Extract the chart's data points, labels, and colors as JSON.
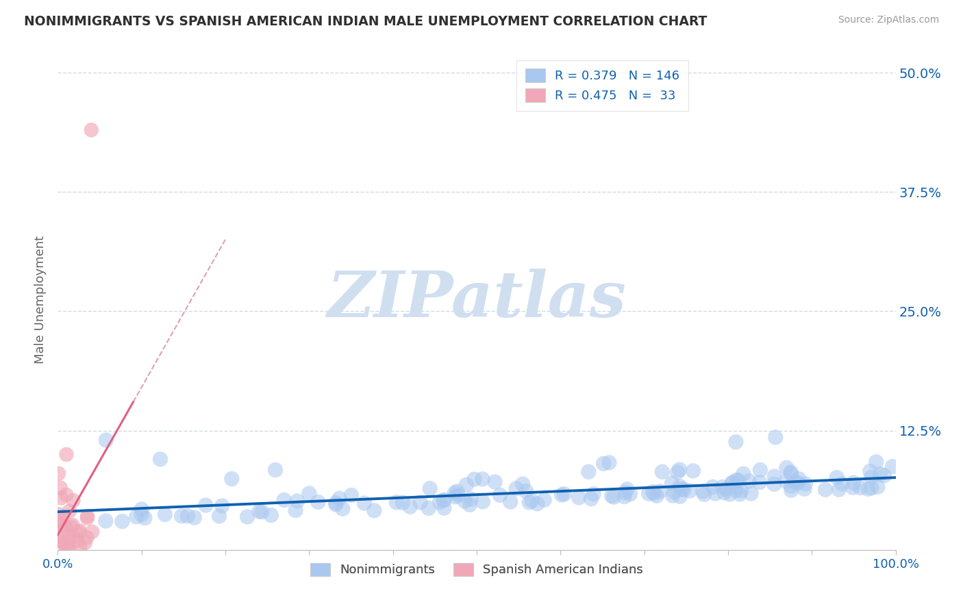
{
  "title": "NONIMMIGRANTS VS SPANISH AMERICAN INDIAN MALE UNEMPLOYMENT CORRELATION CHART",
  "source_text": "Source: ZipAtlas.com",
  "ylabel": "Male Unemployment",
  "watermark": "ZIPatlas",
  "xlim": [
    0.0,
    1.0
  ],
  "ylim": [
    0.0,
    0.525
  ],
  "yticks": [
    0.0,
    0.125,
    0.25,
    0.375,
    0.5
  ],
  "ytick_labels_right": [
    "50.0%",
    "37.5%",
    "25.0%",
    "12.5%",
    ""
  ],
  "ytick_labels_right_ordered": [
    "",
    "12.5%",
    "25.0%",
    "37.5%",
    "50.0%"
  ],
  "blue_color": "#a8c8f0",
  "pink_color": "#f0a8b8",
  "blue_line_color": "#1060b0",
  "pink_line_color": "#e06080",
  "pink_dash_color": "#e0a0b0",
  "background_color": "#ffffff",
  "grid_color": "#c8d8e8",
  "title_color": "#303030",
  "legend_text_color": "#1060b0",
  "source_color": "#999999",
  "watermark_color": "#d0dff0",
  "blue_R": 0.379,
  "blue_N": 146,
  "pink_R": 0.475,
  "pink_N": 33
}
